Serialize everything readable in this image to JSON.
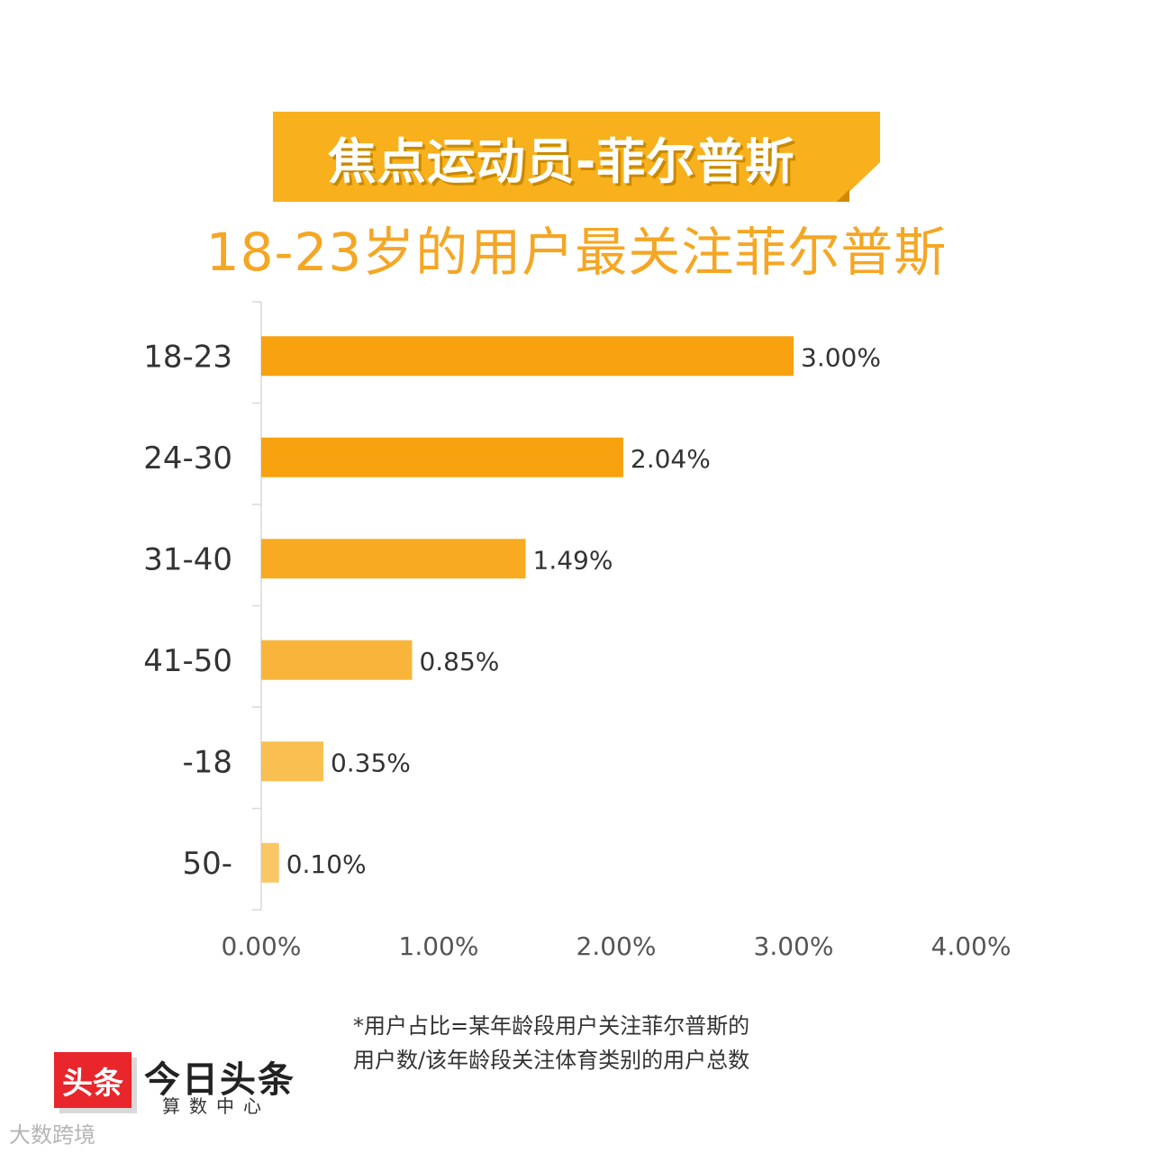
{
  "banner": {
    "title": "焦点运动员-菲尔普斯",
    "color": "#f8b01c"
  },
  "headline": "18-23岁的用户最关注菲尔普斯",
  "chart_data": {
    "type": "bar",
    "orientation": "horizontal",
    "title": "18-23岁的用户最关注菲尔普斯",
    "categories": [
      "18-23",
      "24-30",
      "31-40",
      "41-50",
      "-18",
      "50-"
    ],
    "values": [
      3.0,
      2.04,
      1.49,
      0.85,
      0.35,
      0.1
    ],
    "value_labels": [
      "3.00%",
      "2.04%",
      "1.49%",
      "0.85%",
      "0.35%",
      "0.10%"
    ],
    "bar_colors": [
      "#f7a20e",
      "#f7a20e",
      "#f8ab22",
      "#f8b53a",
      "#f9bf50",
      "#f9c765"
    ],
    "xticks": [
      "0.00%",
      "1.00%",
      "2.00%",
      "3.00%",
      "4.00%"
    ],
    "xlim": [
      0,
      4
    ],
    "grid": false,
    "xlabel": "",
    "ylabel": ""
  },
  "footnote": {
    "line1": "*用户占比=某年龄段用户关注菲尔普斯的",
    "line2": "用户数/该年龄段关注体育类别的用户总数"
  },
  "logo": {
    "badge": "头条",
    "name": "今日头条",
    "sub": "算数中心"
  },
  "watermark": "大数跨境"
}
